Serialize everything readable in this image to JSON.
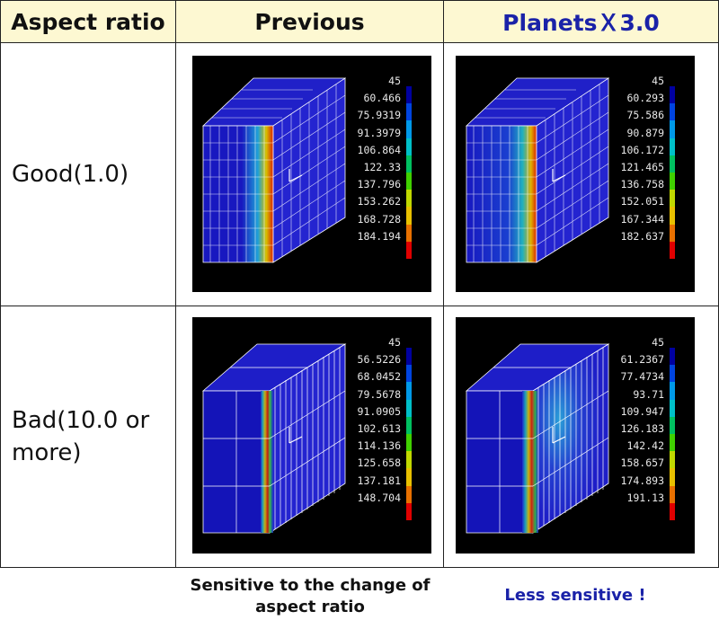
{
  "table": {
    "headers": {
      "aspect_ratio": "Aspect ratio",
      "previous": "Previous",
      "planets": "PlanetsＸ3.0"
    },
    "rows": [
      {
        "label": "Good(1.0)",
        "previous_legend": [
          "45",
          "60.466",
          "75.9319",
          "91.3979",
          "106.864",
          "122.33",
          "137.796",
          "153.262",
          "168.728",
          "184.194"
        ],
        "planets_legend": [
          "45",
          "60.293",
          "75.586",
          "90.879",
          "106.172",
          "121.465",
          "136.758",
          "152.051",
          "167.344",
          "182.637"
        ]
      },
      {
        "label": "Bad(10.0 or more)",
        "previous_legend": [
          "45",
          "56.5226",
          "68.0452",
          "79.5678",
          "91.0905",
          "102.613",
          "114.136",
          "125.658",
          "137.181",
          "148.704"
        ],
        "planets_legend": [
          "45",
          "61.2367",
          "77.4734",
          "93.71",
          "109.947",
          "126.183",
          "142.42",
          "158.657",
          "174.893",
          "191.13"
        ]
      }
    ]
  },
  "captions": {
    "previous": "Sensitive to the change of aspect ratio",
    "planets": "Less sensitive !"
  },
  "colors": {
    "header_bg": "#fdf8d2",
    "planets_text": "#1a22a8",
    "legend_scale": [
      "#0000a0",
      "#0044e0",
      "#0099e8",
      "#00c0c8",
      "#00c060",
      "#40d000",
      "#c0d800",
      "#e8c000",
      "#e87000",
      "#e00000"
    ]
  }
}
